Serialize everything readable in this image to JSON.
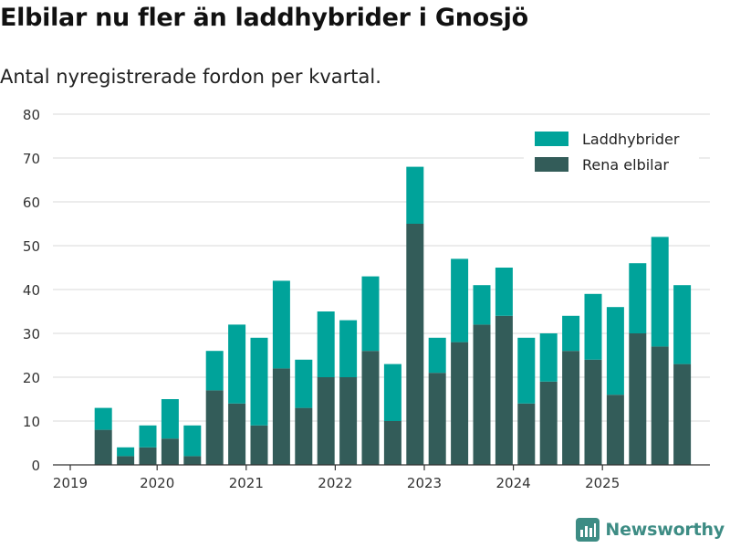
{
  "title": "Elbilar nu fler än laddhybrider i Gnosjö",
  "subtitle": "Antal nyregistrerade fordon per kvartal.",
  "brand": "Newsworthy",
  "colors": {
    "phev": "#00a39a",
    "bev": "#335c59",
    "grid": "#d9d9d9",
    "axis": "#333333",
    "brand": "#3d8c84"
  },
  "chart_data": {
    "type": "bar",
    "stacked": true,
    "categories": [
      "2019Q2",
      "2019Q3",
      "2019Q4",
      "2020Q1",
      "2020Q2",
      "2020Q3",
      "2020Q4",
      "2021Q1",
      "2021Q2",
      "2021Q3",
      "2021Q4",
      "2022Q1",
      "2022Q2",
      "2022Q3",
      "2022Q4",
      "2023Q1",
      "2023Q2",
      "2023Q3",
      "2023Q4",
      "2024Q1",
      "2024Q2",
      "2024Q3",
      "2024Q4",
      "2025Q1",
      "2025Q2",
      "2025Q3",
      "2025Q4"
    ],
    "series": [
      {
        "name": "Rena elbilar",
        "color": "#335c59",
        "values": [
          8,
          2,
          4,
          6,
          2,
          17,
          14,
          9,
          22,
          13,
          20,
          20,
          26,
          10,
          55,
          21,
          28,
          32,
          34,
          14,
          19,
          26,
          24,
          16,
          30,
          27,
          23
        ]
      },
      {
        "name": "Laddhybrider",
        "color": "#00a39a",
        "values": [
          5,
          2,
          5,
          9,
          7,
          9,
          18,
          20,
          20,
          11,
          15,
          13,
          17,
          13,
          13,
          8,
          19,
          9,
          11,
          15,
          11,
          8,
          15,
          20,
          16,
          25,
          18
        ]
      }
    ],
    "legend": [
      "Laddhybrider",
      "Rena elbilar"
    ],
    "legend_position": "top-right",
    "x_tick_labels": [
      "2019",
      "2020",
      "2021",
      "2022",
      "2023",
      "2024",
      "2025"
    ],
    "y_ticks": [
      0,
      10,
      20,
      30,
      40,
      50,
      60,
      70,
      80
    ],
    "ylim": [
      0,
      80
    ],
    "xlabel": "",
    "ylabel": "",
    "grid": true
  }
}
